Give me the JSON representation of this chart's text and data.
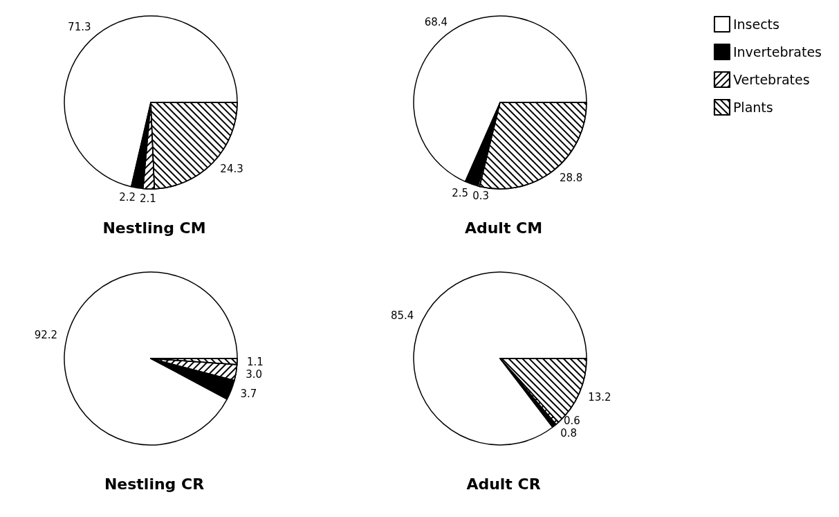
{
  "chart_data": [
    {
      "type": "pie",
      "title": "Nestling CM",
      "categories": [
        null,
        null,
        null,
        null
      ],
      "values": [
        71.3,
        2.2,
        2.1,
        24.3
      ],
      "colors": [
        "#ffffff",
        "#000000",
        "#ffffff",
        "#ffffff"
      ],
      "data_labels": true
    },
    {
      "type": "pie",
      "title": "Adult CM",
      "categories": [
        "Insects",
        "Invertebrates",
        "Vertebrates",
        "Plants"
      ],
      "values": [
        68.4,
        2.5,
        0.3,
        28.8
      ],
      "colors": [
        "#ffffff",
        "#000000",
        "#ffffff",
        "#ffffff"
      ],
      "data_labels": true,
      "legend": "top right"
    },
    {
      "type": "pie",
      "title": "Nestling CR",
      "categories": [
        null,
        null,
        null,
        null
      ],
      "values": [
        92.2,
        3.7,
        3.0,
        1.1
      ],
      "colors": [
        "#ffffff",
        "#000000",
        "#ffffff",
        "#ffffff"
      ],
      "value_labels": [
        "92.2",
        "3.7",
        "3.0",
        "1.1"
      ]
    },
    {
      "type": "pie",
      "title": "Adult CR",
      "categories": [
        null,
        null,
        null,
        null
      ],
      "values": [
        85.4,
        0.8,
        0.6,
        13.2
      ],
      "colors": [
        "#ffffff",
        "#000000",
        "#ffffff",
        "#ffffff"
      ],
      "data_labels": true
    }
  ]
}
